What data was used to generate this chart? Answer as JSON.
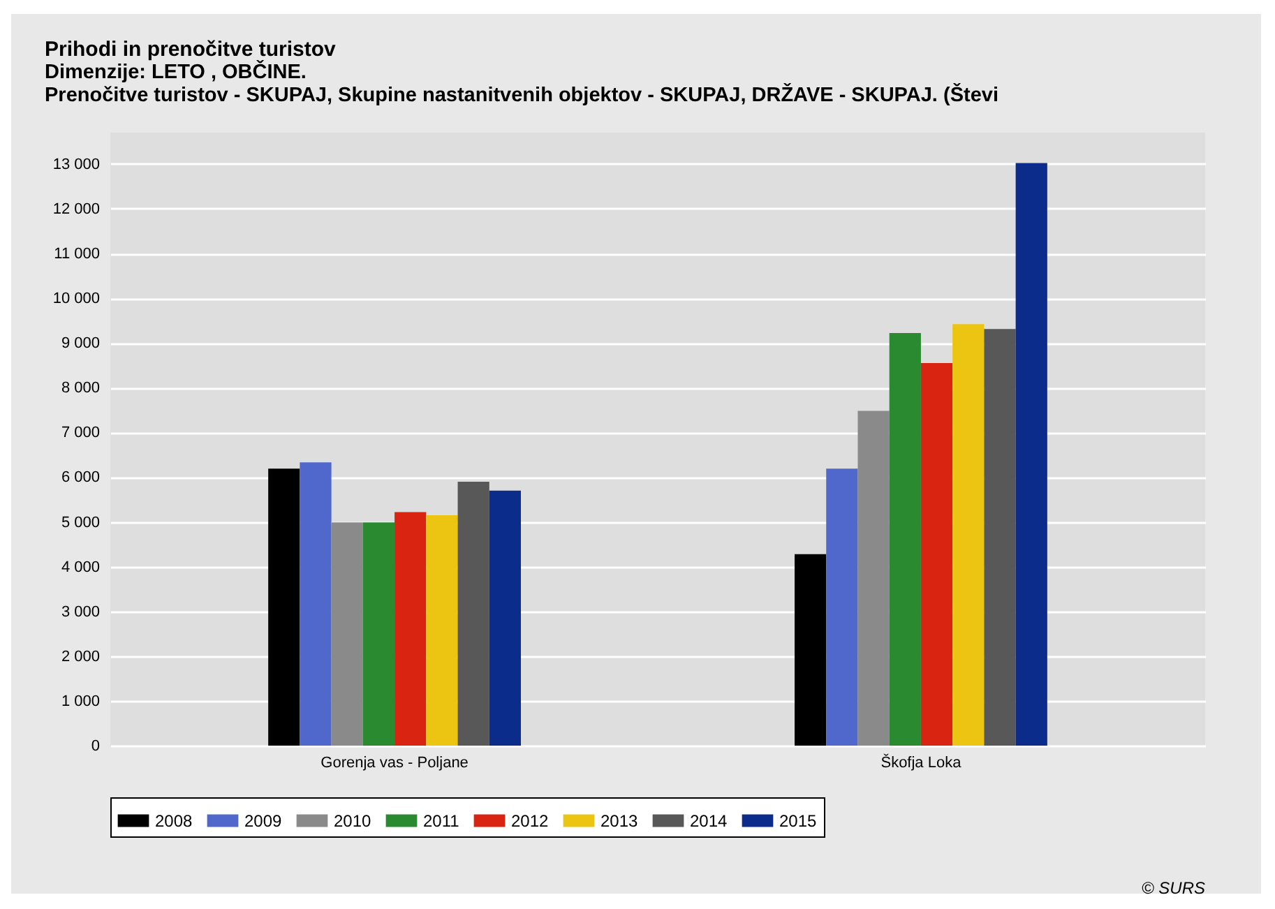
{
  "chart_data": {
    "type": "bar",
    "title": "Prihodi in prenočitve turistov",
    "subtitle": "Dimenzije: LETO , OBČINE.\nPrenočitve turistov - SKUPAJ, Skupine nastanitvenih objektov - SKUPAJ, DRŽAVE - SKUPAJ. (Števi",
    "categories": [
      "Gorenja vas - Poljane",
      "Škofja Loka"
    ],
    "series": [
      {
        "name": "2008",
        "color": "#000000",
        "values": [
          6190,
          4280
        ]
      },
      {
        "name": "2009",
        "color": "#5068cc",
        "values": [
          6330,
          6190
        ]
      },
      {
        "name": "2010",
        "color": "#8a8a8a",
        "values": [
          4990,
          7480
        ]
      },
      {
        "name": "2011",
        "color": "#2a8a30",
        "values": [
          4990,
          9220
        ]
      },
      {
        "name": "2012",
        "color": "#d82410",
        "values": [
          5220,
          8550
        ]
      },
      {
        "name": "2013",
        "color": "#ecc412",
        "values": [
          5150,
          9420
        ]
      },
      {
        "name": "2014",
        "color": "#585858",
        "values": [
          5900,
          9310
        ]
      },
      {
        "name": "2015",
        "color": "#0c2c8c",
        "values": [
          5700,
          13020
        ]
      }
    ],
    "ylim": [
      0,
      13700
    ],
    "yticks": [
      0,
      {
        "value": 1000,
        "label": "1 000"
      },
      {
        "value": 2000,
        "label": "2 000"
      },
      {
        "value": 3000,
        "label": "3 000"
      },
      {
        "value": 4000,
        "label": "4 000"
      },
      {
        "value": 5000,
        "label": "5 000"
      },
      {
        "value": 6000,
        "label": "6 000"
      },
      {
        "value": 7000,
        "label": "7 000"
      },
      {
        "value": 8000,
        "label": "8 000"
      },
      {
        "value": 9000,
        "label": "9 000"
      },
      {
        "value": 10000,
        "label": "10 000"
      },
      {
        "value": 11000,
        "label": "11 000"
      },
      {
        "value": 12000,
        "label": "12 000"
      },
      {
        "value": 13000,
        "label": "13 000"
      }
    ],
    "grid": "y",
    "legend": "bottom",
    "annotations": [
      "© SURS"
    ]
  }
}
